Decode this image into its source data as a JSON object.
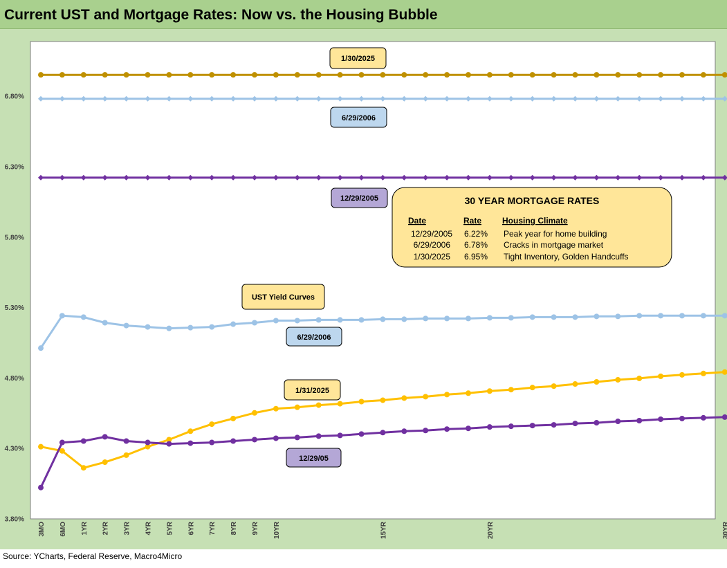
{
  "title": "Current UST and Mortgage Rates: Now vs. the Housing Bubble",
  "source": "Source: YCharts, Federal Reserve, Macro4Micro",
  "colors": {
    "frame": "#c6e0b4",
    "title_bar": "#a9d08e",
    "jan2025": "#ffc000",
    "jan2025_mortgage": "#bf9000",
    "jun2006": "#9dc3e6",
    "dec2005": "#7030a0",
    "callout_gold": "#ffe699",
    "callout_blue": "#bdd7ee",
    "callout_purple": "#b4a7d6"
  },
  "chart_data": {
    "type": "line",
    "ylim": [
      3.8,
      7.1
    ],
    "y_ticks": [
      "3.80%",
      "4.30%",
      "4.80%",
      "5.30%",
      "5.80%",
      "6.30%",
      "6.80%"
    ],
    "x_labels": [
      "3MO",
      "6MO",
      "1YR",
      "2YR",
      "3YR",
      "4YR",
      "5YR",
      "6YR",
      "7YR",
      "8YR",
      "9YR",
      "10YR",
      "",
      "",
      "",
      "",
      "15YR",
      "",
      "",
      "",
      "",
      "20YR",
      "",
      "",
      "",
      "",
      "",
      "",
      "",
      "",
      "",
      "",
      "30YR"
    ],
    "series": [
      {
        "key": "mort2025",
        "color": "#bf9000",
        "marker": "circle",
        "values": [
          6.95,
          6.95,
          6.95,
          6.95,
          6.95,
          6.95,
          6.95,
          6.95,
          6.95,
          6.95,
          6.95,
          6.95,
          6.95,
          6.95,
          6.95,
          6.95,
          6.95,
          6.95,
          6.95,
          6.95,
          6.95,
          6.95,
          6.95,
          6.95,
          6.95,
          6.95,
          6.95,
          6.95,
          6.95,
          6.95,
          6.95,
          6.95,
          6.95
        ]
      },
      {
        "key": "mort2006",
        "color": "#9dc3e6",
        "marker": "diamond",
        "values": [
          6.78,
          6.78,
          6.78,
          6.78,
          6.78,
          6.78,
          6.78,
          6.78,
          6.78,
          6.78,
          6.78,
          6.78,
          6.78,
          6.78,
          6.78,
          6.78,
          6.78,
          6.78,
          6.78,
          6.78,
          6.78,
          6.78,
          6.78,
          6.78,
          6.78,
          6.78,
          6.78,
          6.78,
          6.78,
          6.78,
          6.78,
          6.78,
          6.78
        ]
      },
      {
        "key": "mort2005",
        "color": "#7030a0",
        "marker": "diamond",
        "values": [
          6.22,
          6.22,
          6.22,
          6.22,
          6.22,
          6.22,
          6.22,
          6.22,
          6.22,
          6.22,
          6.22,
          6.22,
          6.22,
          6.22,
          6.22,
          6.22,
          6.22,
          6.22,
          6.22,
          6.22,
          6.22,
          6.22,
          6.22,
          6.22,
          6.22,
          6.22,
          6.22,
          6.22,
          6.22,
          6.22,
          6.22,
          6.22,
          6.22
        ]
      },
      {
        "key": "ust2006",
        "color": "#9dc3e6",
        "marker": "circle",
        "values": [
          5.01,
          5.24,
          5.23,
          5.19,
          5.17,
          5.16,
          5.15,
          5.155,
          5.16,
          5.18,
          5.19,
          5.205,
          5.205,
          5.21,
          5.21,
          5.21,
          5.215,
          5.215,
          5.22,
          5.22,
          5.22,
          5.225,
          5.225,
          5.23,
          5.23,
          5.23,
          5.235,
          5.235,
          5.24,
          5.24,
          5.24,
          5.24,
          5.24
        ]
      },
      {
        "key": "ust2025",
        "color": "#ffc000",
        "marker": "circle",
        "values": [
          4.31,
          4.28,
          4.16,
          4.2,
          4.25,
          4.31,
          4.36,
          4.42,
          4.47,
          4.51,
          4.55,
          4.58,
          4.59,
          4.605,
          4.615,
          4.63,
          4.64,
          4.655,
          4.665,
          4.68,
          4.69,
          4.705,
          4.715,
          4.73,
          4.74,
          4.755,
          4.77,
          4.785,
          4.795,
          4.81,
          4.82,
          4.83,
          4.84
        ]
      },
      {
        "key": "ust2005",
        "color": "#7030a0",
        "marker": "circle",
        "values": [
          4.02,
          4.34,
          4.35,
          4.38,
          4.35,
          4.34,
          4.33,
          4.335,
          4.34,
          4.35,
          4.36,
          4.37,
          4.375,
          4.385,
          4.39,
          4.4,
          4.41,
          4.42,
          4.425,
          4.435,
          4.44,
          4.45,
          4.455,
          4.46,
          4.465,
          4.475,
          4.48,
          4.49,
          4.495,
          4.505,
          4.51,
          4.515,
          4.52
        ]
      }
    ]
  },
  "callouts": {
    "mort2025": "1/30/2025",
    "mort2006": "6/29/2006",
    "mort2005": "12/29/2005",
    "ust_title": "UST  Yield Curves",
    "ust2006": "6/29/2006",
    "ust2025": "1/31/2025",
    "ust2005": "12/29/05"
  },
  "table": {
    "title": "30 YEAR MORTGAGE RATES",
    "headers": [
      "Date",
      "Rate",
      "Housing Climate"
    ],
    "rows": [
      [
        "12/29/2005",
        "6.22%",
        "Peak year for home building"
      ],
      [
        "6/29/2006",
        "6.78%",
        "Cracks in mortgage market"
      ],
      [
        "1/30/2025",
        "6.95%",
        "Tight Inventory, Golden Handcuffs"
      ]
    ]
  }
}
